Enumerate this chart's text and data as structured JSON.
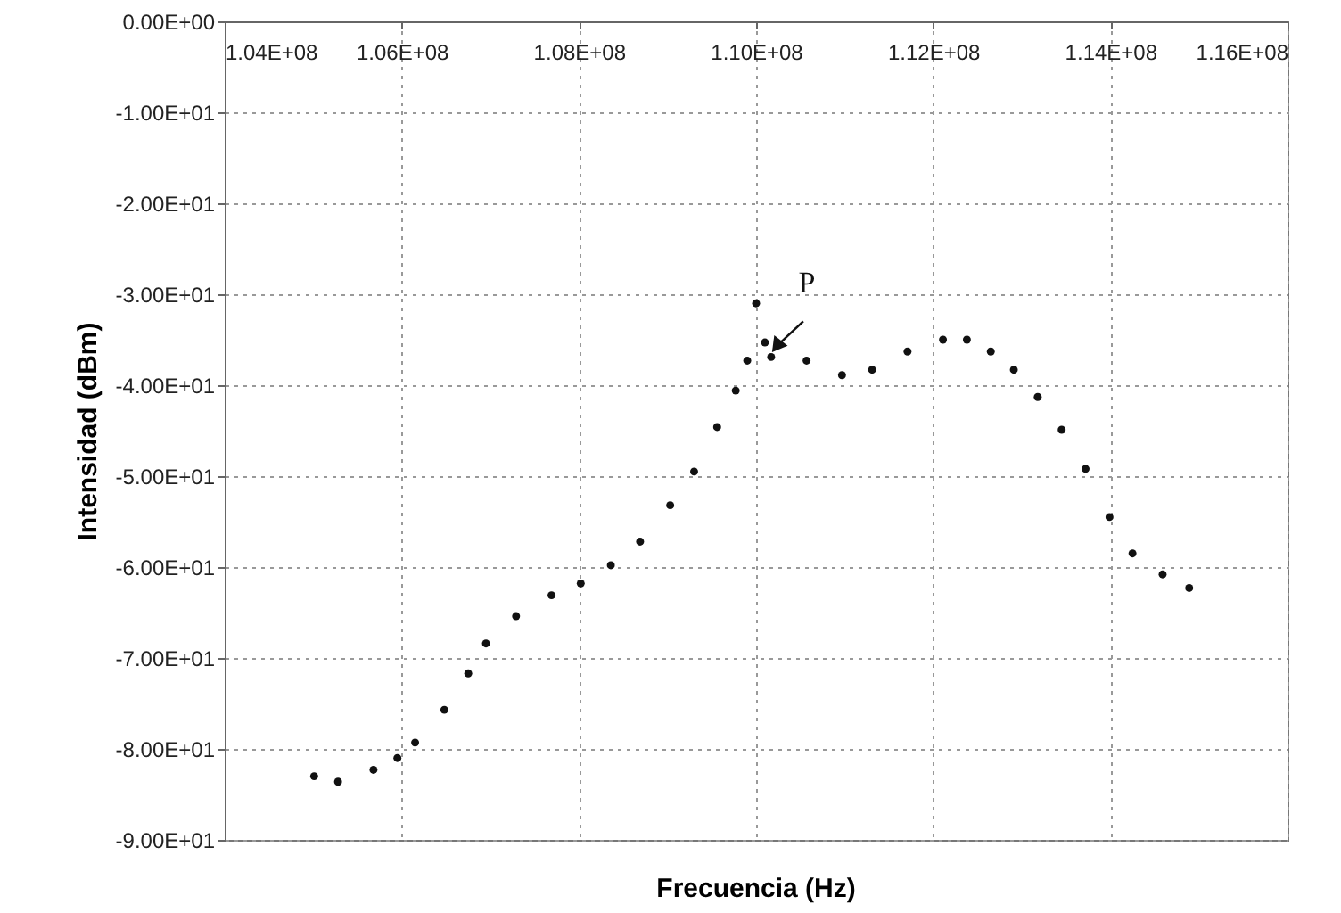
{
  "chart_data": {
    "type": "scatter",
    "xlabel": "Frecuencia (Hz)",
    "ylabel": "Intensidad (dBm)",
    "color": "#111111",
    "marker": "circle",
    "grid": true,
    "x": [
      105010000,
      105280000,
      105680000,
      105950000,
      106150000,
      106480000,
      106750000,
      106950000,
      107290000,
      107690000,
      108020000,
      108360000,
      108690000,
      109030000,
      109300000,
      109560000,
      109770000,
      109900000,
      110000000,
      110100000,
      110170000,
      110570000,
      110970000,
      111310000,
      111710000,
      112110000,
      112380000,
      112650000,
      112910000,
      113180000,
      113450000,
      113720000,
      113990000,
      114250000,
      114590000,
      114890000
    ],
    "values": [
      -83.0,
      -83.6,
      -82.3,
      -81.0,
      -79.3,
      -75.7,
      -71.7,
      -68.4,
      -65.4,
      -63.1,
      -61.8,
      -59.8,
      -57.2,
      -53.2,
      -49.5,
      -44.6,
      -40.6,
      -37.3,
      -31.0,
      -35.3,
      -36.9,
      -37.3,
      -38.9,
      -38.3,
      -36.3,
      -35.0,
      -35.0,
      -36.3,
      -38.3,
      -41.3,
      -44.9,
      -49.2,
      -54.5,
      -58.5,
      -60.8,
      -62.3
    ],
    "xlim": [
      104000000,
      116000000
    ],
    "xticks": [
      {
        "value": 104000000,
        "label": "1.04E+08"
      },
      {
        "value": 106000000,
        "label": "1.06E+08"
      },
      {
        "value": 108000000,
        "label": "1.08E+08"
      },
      {
        "value": 110000000,
        "label": "1.10E+08"
      },
      {
        "value": 112000000,
        "label": "1.12E+08"
      },
      {
        "value": 114000000,
        "label": "1.14E+08"
      },
      {
        "value": 116000000,
        "label": "1.16E+08"
      }
    ],
    "ylim": [
      -90,
      0
    ],
    "yticks": [
      {
        "value": 0,
        "label": "0.00E+00"
      },
      {
        "value": -10,
        "label": "-1.00E+01"
      },
      {
        "value": -20,
        "label": "-2.00E+01"
      },
      {
        "value": -30,
        "label": "-3.00E+01"
      },
      {
        "value": -40,
        "label": "-4.00E+01"
      },
      {
        "value": -50,
        "label": "-5.00E+01"
      },
      {
        "value": -60,
        "label": "-6.00E+01"
      },
      {
        "value": -70,
        "label": "-7.00E+01"
      },
      {
        "value": -80,
        "label": "-8.00E+01"
      },
      {
        "value": -90,
        "label": "-9.00E+01"
      }
    ],
    "annotations": [
      {
        "text": "P",
        "x": 110170000,
        "y": -36.9
      }
    ]
  }
}
